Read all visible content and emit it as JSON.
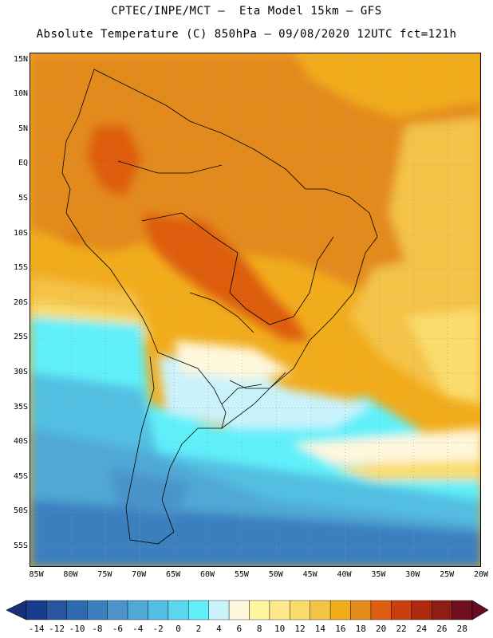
{
  "header": {
    "title_line1": "CPTEC/INPE/MCT —  Eta Model 15km — GFS",
    "title_line2": "Absolute Temperature (C) 850hPa — 09/08/2020 12UTC fct=121h"
  },
  "map": {
    "region": "South America",
    "variable": "Absolute Temperature (C) 850hPa",
    "lat_range": [
      -58,
      16
    ],
    "lon_range": [
      -86,
      -20
    ],
    "lat_labels": [
      "15N",
      "10N",
      "5N",
      "EQ",
      "5S",
      "10S",
      "15S",
      "20S",
      "25S",
      "30S",
      "35S",
      "40S",
      "45S",
      "50S",
      "55S"
    ],
    "lat_values": [
      15,
      10,
      5,
      0,
      -5,
      -10,
      -15,
      -20,
      -25,
      -30,
      -35,
      -40,
      -45,
      -50,
      -55
    ],
    "lon_labels": [
      "85W",
      "80W",
      "75W",
      "70W",
      "65W",
      "60W",
      "55W",
      "50W",
      "45W",
      "40W",
      "35W",
      "30W",
      "25W",
      "20W"
    ],
    "lon_values": [
      -85,
      -80,
      -75,
      -70,
      -65,
      -60,
      -55,
      -50,
      -45,
      -40,
      -35,
      -30,
      -25,
      -20
    ]
  },
  "colorbar": {
    "labels": [
      "-14",
      "-12",
      "-10",
      "-8",
      "-6",
      "-4",
      "-2",
      "0",
      "2",
      "4",
      "6",
      "8",
      "10",
      "12",
      "14",
      "16",
      "18",
      "20",
      "22",
      "24",
      "26",
      "28"
    ],
    "colors": [
      "#1a3c8c",
      "#27559e",
      "#2d6aaf",
      "#3a7fbf",
      "#4a93cb",
      "#4fa8d5",
      "#52bfe2",
      "#5ad6ee",
      "#61f0fa",
      "#caf2fb",
      "#fff7dc",
      "#fef6a0",
      "#fde88c",
      "#fadc6c",
      "#f4c346",
      "#f1ac1c",
      "#e38a1d",
      "#de5d10",
      "#c9400d",
      "#ad2a0f",
      "#8e1f16",
      "#6f0f1f"
    ],
    "under_color": "#1a2f7c",
    "over_color": "#6a0b22"
  }
}
